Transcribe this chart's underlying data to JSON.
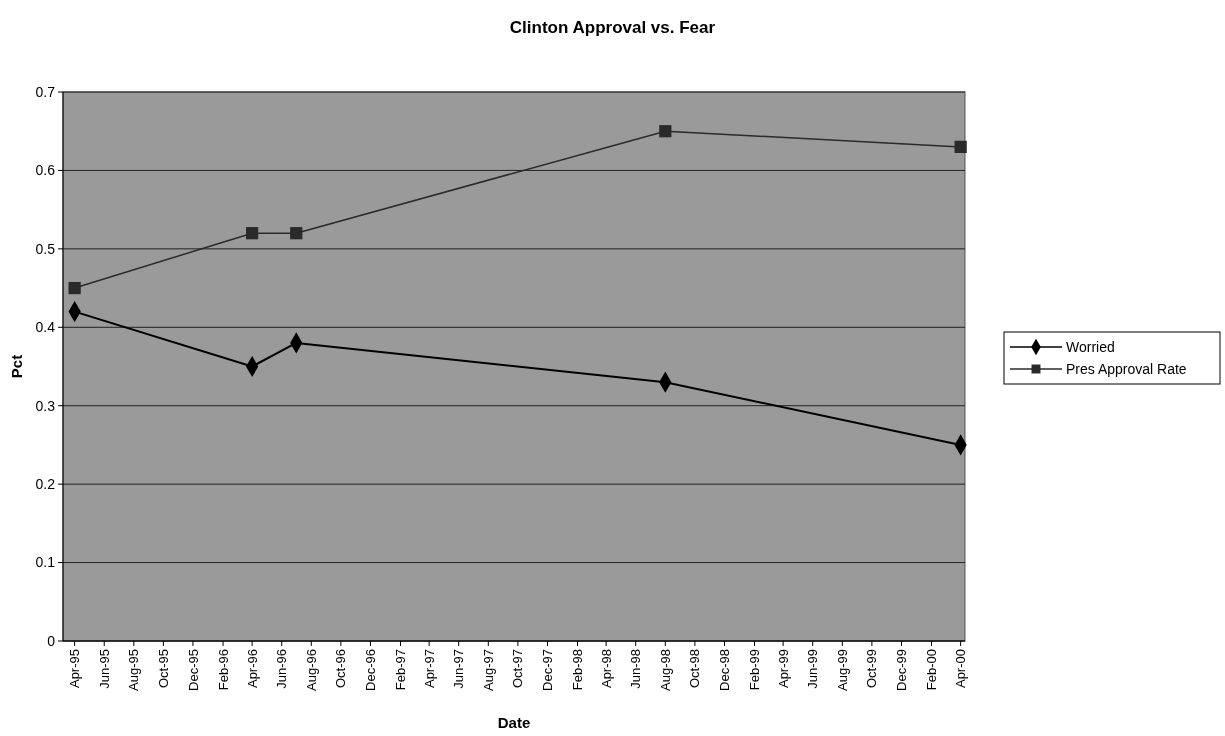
{
  "chart_data": {
    "type": "line",
    "title": "Clinton Approval vs. Fear",
    "xlabel": "Date",
    "ylabel": "Pct",
    "xlim": [
      "1995-03-08",
      "2000-04-10"
    ],
    "ylim": [
      0,
      0.7
    ],
    "yticks": [
      0,
      0.1,
      0.2,
      0.3,
      0.4,
      0.5,
      0.6,
      0.7
    ],
    "xticks": [
      {
        "value": "1995-04-01",
        "label": "Apr-95"
      },
      {
        "value": "1995-06-01",
        "label": "Jun-95"
      },
      {
        "value": "1995-08-01",
        "label": "Aug-95"
      },
      {
        "value": "1995-10-01",
        "label": "Oct-95"
      },
      {
        "value": "1995-12-01",
        "label": "Dec-95"
      },
      {
        "value": "1996-02-01",
        "label": "Feb-96"
      },
      {
        "value": "1996-04-01",
        "label": "Apr-96"
      },
      {
        "value": "1996-06-01",
        "label": "Jun-96"
      },
      {
        "value": "1996-08-01",
        "label": "Aug-96"
      },
      {
        "value": "1996-10-01",
        "label": "Oct-96"
      },
      {
        "value": "1996-12-01",
        "label": "Dec-96"
      },
      {
        "value": "1997-02-01",
        "label": "Feb-97"
      },
      {
        "value": "1997-04-01",
        "label": "Apr-97"
      },
      {
        "value": "1997-06-01",
        "label": "Jun-97"
      },
      {
        "value": "1997-08-01",
        "label": "Aug-97"
      },
      {
        "value": "1997-10-01",
        "label": "Oct-97"
      },
      {
        "value": "1997-12-01",
        "label": "Dec-97"
      },
      {
        "value": "1998-02-01",
        "label": "Feb-98"
      },
      {
        "value": "1998-04-01",
        "label": "Apr-98"
      },
      {
        "value": "1998-06-01",
        "label": "Jun-98"
      },
      {
        "value": "1998-08-01",
        "label": "Aug-98"
      },
      {
        "value": "1998-10-01",
        "label": "Oct-98"
      },
      {
        "value": "1998-12-01",
        "label": "Dec-98"
      },
      {
        "value": "1999-02-01",
        "label": "Feb-99"
      },
      {
        "value": "1999-04-01",
        "label": "Apr-99"
      },
      {
        "value": "1999-06-01",
        "label": "Jun-99"
      },
      {
        "value": "1999-08-01",
        "label": "Aug-99"
      },
      {
        "value": "1999-10-01",
        "label": "Oct-99"
      },
      {
        "value": "1999-12-01",
        "label": "Dec-99"
      },
      {
        "value": "2000-02-01",
        "label": "Feb-00"
      },
      {
        "value": "2000-04-01",
        "label": "Apr-00"
      }
    ],
    "x": [
      "1995-04-01",
      "1996-04-01",
      "1996-07-01",
      "1998-08-01",
      "2000-04-01"
    ],
    "series": [
      {
        "name": "Worried",
        "color": "#000000",
        "marker": "diamond",
        "values": [
          0.42,
          0.35,
          0.38,
          0.33,
          0.25
        ]
      },
      {
        "name": "Pres Approval Rate",
        "color": "#2a2a2a",
        "marker": "square",
        "values": [
          0.45,
          0.52,
          0.52,
          0.65,
          0.63
        ]
      }
    ],
    "grid": "y",
    "legend": "right"
  }
}
